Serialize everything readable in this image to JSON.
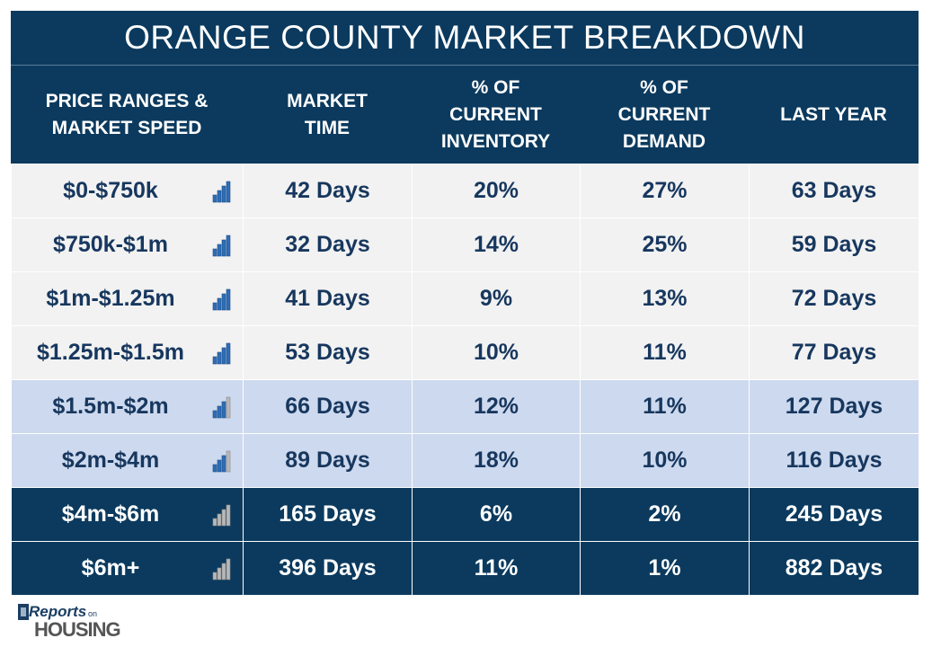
{
  "header": {
    "title": "ORANGE COUNTY MARKET BREAKDOWN"
  },
  "table": {
    "columns": [
      "PRICE RANGES & MARKET SPEED",
      "MARKET TIME",
      "% OF CURRENT INVENTORY",
      "% OF CURRENT DEMAND",
      "LAST YEAR"
    ],
    "rows": [
      [
        "$0-$750k",
        "42 Days",
        "20%",
        "27%",
        "63 Days"
      ],
      [
        "$750k-$1m",
        "32 Days",
        "14%",
        "25%",
        "59 Days"
      ],
      [
        "$1m-$1.25m",
        "41 Days",
        "9%",
        "13%",
        "72 Days"
      ],
      [
        "$1.25m-$1.5m",
        "53 Days",
        "10%",
        "11%",
        "77 Days"
      ],
      [
        "$1.5m-$2m",
        "66 Days",
        "12%",
        "11%",
        "127 Days"
      ],
      [
        "$2m-$4m",
        "89 Days",
        "18%",
        "10%",
        "116 Days"
      ],
      [
        "$4m-$6m",
        "165 Days",
        "6%",
        "2%",
        "245 Days"
      ],
      [
        "$6m+",
        "396 Days",
        "11%",
        "1%",
        "882 Days"
      ]
    ]
  },
  "logo": {
    "brand": "Reports",
    "small": "on",
    "name": "HOUSING"
  }
}
